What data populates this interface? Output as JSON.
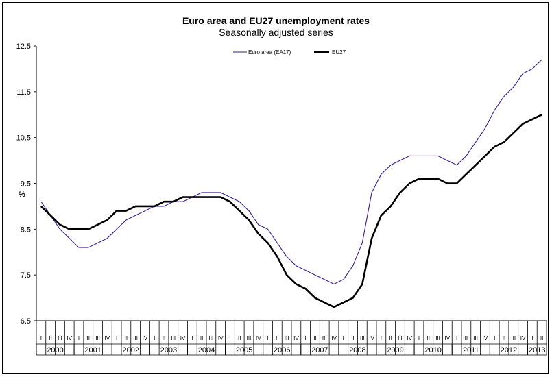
{
  "chart_data": {
    "type": "line",
    "title": "Euro area and EU27 unemployment rates",
    "subtitle": "Seasonally adjusted series",
    "ylabel": "%",
    "ylim": [
      6.5,
      12.5
    ],
    "yticks": [
      "6.5",
      "7.5",
      "8.5",
      "9.5",
      "10.5",
      "11.5",
      "12.5"
    ],
    "quarter_labels": [
      "I",
      "II",
      "III",
      "IV"
    ],
    "years": [
      "2000",
      "2001",
      "2002",
      "2003",
      "2004",
      "2005",
      "2006",
      "2007",
      "2008",
      "2009",
      "2010",
      "2011",
      "2012",
      "2013"
    ],
    "grid": false,
    "legend_position": "top",
    "x": [
      "2000-01",
      "2000-04",
      "2000-07",
      "2000-10",
      "2001-01",
      "2001-04",
      "2001-07",
      "2001-10",
      "2002-01",
      "2002-04",
      "2002-07",
      "2002-10",
      "2003-01",
      "2003-04",
      "2003-07",
      "2003-10",
      "2004-01",
      "2004-04",
      "2004-07",
      "2004-10",
      "2005-01",
      "2005-04",
      "2005-07",
      "2005-10",
      "2006-01",
      "2006-04",
      "2006-07",
      "2006-10",
      "2007-01",
      "2007-04",
      "2007-07",
      "2007-10",
      "2008-01",
      "2008-04",
      "2008-07",
      "2008-10",
      "2009-01",
      "2009-04",
      "2009-07",
      "2009-10",
      "2010-01",
      "2010-04",
      "2010-07",
      "2010-10",
      "2011-01",
      "2011-04",
      "2011-07",
      "2011-10",
      "2012-01",
      "2012-04",
      "2012-07",
      "2012-10",
      "2013-01",
      "2013-04"
    ],
    "series": [
      {
        "name": "Euro area (EA17)",
        "color": "#3a1a8c",
        "values": [
          9.1,
          8.8,
          8.5,
          8.3,
          8.1,
          8.1,
          8.2,
          8.3,
          8.5,
          8.7,
          8.8,
          8.9,
          9.0,
          9.0,
          9.1,
          9.1,
          9.2,
          9.3,
          9.3,
          9.3,
          9.2,
          9.1,
          8.9,
          8.6,
          8.5,
          8.2,
          7.9,
          7.7,
          7.6,
          7.5,
          7.4,
          7.3,
          7.4,
          7.7,
          8.2,
          9.3,
          9.7,
          9.9,
          10.0,
          10.1,
          10.1,
          10.1,
          10.1,
          10.0,
          9.9,
          10.1,
          10.4,
          10.7,
          11.1,
          11.4,
          11.6,
          11.9,
          12.0,
          12.2
        ]
      },
      {
        "name": "EU27",
        "color": "#000000",
        "values": [
          9.0,
          8.8,
          8.6,
          8.5,
          8.5,
          8.5,
          8.6,
          8.7,
          8.9,
          8.9,
          9.0,
          9.0,
          9.0,
          9.1,
          9.1,
          9.2,
          9.2,
          9.2,
          9.2,
          9.2,
          9.1,
          8.9,
          8.7,
          8.4,
          8.2,
          7.9,
          7.5,
          7.3,
          7.2,
          7.0,
          6.9,
          6.8,
          6.9,
          7.0,
          7.3,
          8.3,
          8.8,
          9.0,
          9.3,
          9.5,
          9.6,
          9.6,
          9.6,
          9.5,
          9.5,
          9.7,
          9.9,
          10.1,
          10.3,
          10.4,
          10.6,
          10.8,
          10.9,
          11.0
        ]
      }
    ]
  }
}
